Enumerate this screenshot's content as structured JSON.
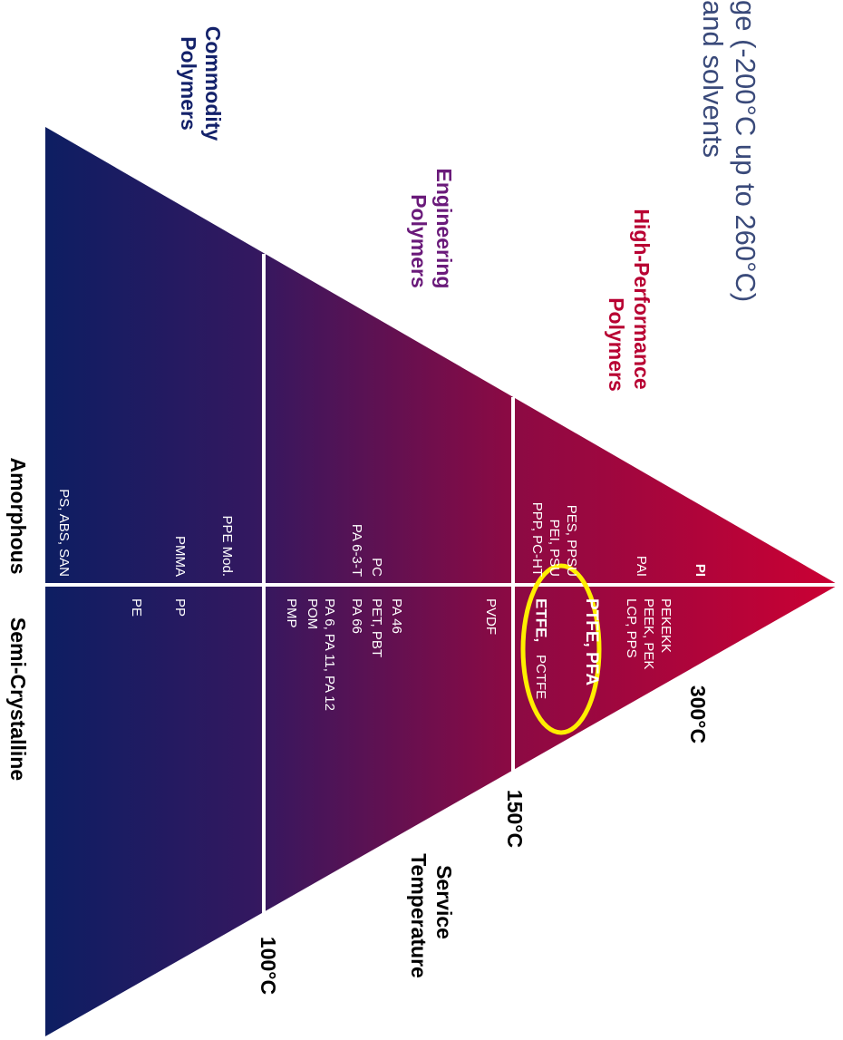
{
  "header": {
    "line1": "ge (-200°C up to 260°C)",
    "line2": "and solvents"
  },
  "categories": {
    "commodity": [
      "Commodity",
      "Polymers"
    ],
    "engineering": [
      "Engineering",
      "Polymers"
    ],
    "high_performance": [
      "High-Performance",
      "Polymers"
    ]
  },
  "service_temperature": {
    "title": [
      "Service",
      "Temperature"
    ],
    "t300": "300°C",
    "t150": "150°C",
    "t100": "100°C"
  },
  "axis": {
    "amorphous": "Amorphous",
    "semi_crystalline": "Semi-Crystalline"
  },
  "amorphous_polymers": {
    "pi": "PI",
    "pai": "PAI",
    "pes": "PES, PPSU",
    "pei": "PEI, PSU",
    "ppp": "PPP, PC-HT",
    "pc": "PC",
    "pa63t": "PA 6-3-T",
    "ppe": "PPE Mod.",
    "pmma": "PMMA",
    "ps": "PS, ABS, SAN"
  },
  "semi_crystalline_polymers": {
    "pekekk": "PEKEKK",
    "peek": "PEEK, PEK",
    "lcp": "LCP, PPS",
    "ptfe": "PTFE, PFA",
    "etfe": "ETFE,",
    "pctfe": "PCTFE",
    "pvdf": "PVDF",
    "pa46": "PA 46",
    "pet": "PET, PBT",
    "pa66": "PA 66",
    "pa6": "PA 6, PA 11, PA 12",
    "pom": "POM",
    "pmp": "PMP",
    "pp": "PP",
    "pe": "PE"
  },
  "colors": {
    "top": "#cc0033",
    "bottom": "#0a1f63",
    "divider": "#ffffff",
    "highlight": "#ffee00",
    "high_performance_label": "#b80032",
    "engineering_label": "#6a1a7a",
    "commodity_label": "#13216a",
    "header_text": "#3a4a7a"
  }
}
